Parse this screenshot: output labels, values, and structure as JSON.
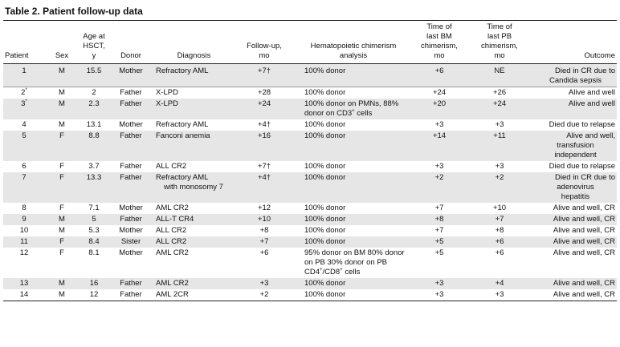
{
  "table": {
    "title": "Table 2. Patient follow-up data",
    "headers": {
      "patient": "Patient",
      "sex": "Sex",
      "age_lines": [
        "Age at",
        "HSCT,",
        "y"
      ],
      "donor": "Donor",
      "diagnosis": "Diagnosis",
      "followup_lines": [
        "Follow-up,",
        "mo"
      ],
      "chimerism_lines": [
        "Hematopoietic chimerism",
        "analysis"
      ],
      "bm_lines": [
        "Time of",
        "last BM",
        "chimerism,",
        "mo"
      ],
      "pb_lines": [
        "Time of",
        "last PB",
        "chimerism,",
        "mo"
      ],
      "outcome": "Outcome"
    },
    "rows": [
      {
        "patient": "1",
        "sex": "M",
        "age": "15.5",
        "donor": "Mother",
        "diagnosis": [
          "Refractory AML"
        ],
        "followup": "+7†",
        "chimerism": [
          "100% donor"
        ],
        "bm": "+6",
        "pb": "NE",
        "outcome": [
          "Died in CR due to",
          "Candida sepsis"
        ]
      },
      {
        "patient": "2*",
        "sex": "M",
        "age": "2",
        "donor": "Father",
        "diagnosis": [
          "X-LPD"
        ],
        "followup": "+28",
        "chimerism": [
          "100% donor"
        ],
        "bm": "+24",
        "pb": "+26",
        "outcome": [
          "Alive and well"
        ]
      },
      {
        "patient": "3*",
        "sex": "M",
        "age": "2.3",
        "donor": "Father",
        "diagnosis": [
          "X-LPD"
        ],
        "followup": "+24",
        "chimerism": [
          "100% donor on PMNs, 88%",
          "donor on CD3+ cells"
        ],
        "bm": "+20",
        "pb": "+24",
        "outcome": [
          "Alive and well"
        ]
      },
      {
        "patient": "4",
        "sex": "M",
        "age": "13.1",
        "donor": "Mother",
        "diagnosis": [
          "Refractory AML"
        ],
        "followup": "+4†",
        "chimerism": [
          "100% donor"
        ],
        "bm": "+3",
        "pb": "+3",
        "outcome": [
          "Died due to relapse"
        ]
      },
      {
        "patient": "5",
        "sex": "F",
        "age": "8.8",
        "donor": "Father",
        "diagnosis": [
          "Fanconi anemia"
        ],
        "followup": "+16",
        "chimerism": [
          "100% donor"
        ],
        "bm": "+14",
        "pb": "+11",
        "outcome": [
          "Alive and well,",
          "transfusion",
          "independent"
        ]
      },
      {
        "patient": "6",
        "sex": "F",
        "age": "3.7",
        "donor": "Father",
        "diagnosis": [
          "ALL CR2"
        ],
        "followup": "+7†",
        "chimerism": [
          "100% donor"
        ],
        "bm": "+3",
        "pb": "+3",
        "outcome": [
          "Died due to relapse"
        ]
      },
      {
        "patient": "7",
        "sex": "F",
        "age": "13.3",
        "donor": "Father",
        "diagnosis": [
          "Refractory AML",
          "with monosomy 7"
        ],
        "followup": "+4†",
        "chimerism": [
          "100% donor"
        ],
        "bm": "+2",
        "pb": "+2",
        "outcome": [
          "Died in CR due to",
          "adenovirus",
          "hepatitis"
        ]
      },
      {
        "patient": "8",
        "sex": "F",
        "age": "7.1",
        "donor": "Mother",
        "diagnosis": [
          "AML CR2"
        ],
        "followup": "+12",
        "chimerism": [
          "100% donor"
        ],
        "bm": "+7",
        "pb": "+10",
        "outcome": [
          "Alive and well, CR"
        ]
      },
      {
        "patient": "9",
        "sex": "M",
        "age": "5",
        "donor": "Father",
        "diagnosis": [
          "ALL-T CR4"
        ],
        "followup": "+10",
        "chimerism": [
          "100% donor"
        ],
        "bm": "+8",
        "pb": "+7",
        "outcome": [
          "Alive and well, CR"
        ]
      },
      {
        "patient": "10",
        "sex": "M",
        "age": "5.3",
        "donor": "Mother",
        "diagnosis": [
          "ALL CR2"
        ],
        "followup": "+8",
        "chimerism": [
          "100% donor"
        ],
        "bm": "+7",
        "pb": "+8",
        "outcome": [
          "Alive and well, CR"
        ]
      },
      {
        "patient": "11",
        "sex": "F",
        "age": "8.4",
        "donor": "Sister",
        "diagnosis": [
          "ALL CR2"
        ],
        "followup": "+7",
        "chimerism": [
          "100% donor"
        ],
        "bm": "+5",
        "pb": "+6",
        "outcome": [
          "Alive and well, CR"
        ]
      },
      {
        "patient": "12",
        "sex": "F",
        "age": "8.1",
        "donor": "Mother",
        "diagnosis": [
          "AML CR2"
        ],
        "followup": "+6",
        "chimerism": [
          "95% donor on BM 80% donor",
          "on PB 30% donor on PB",
          "CD4+/CD8+ cells"
        ],
        "bm": "+5",
        "pb": "+6",
        "outcome": [
          "Alive and well, CR"
        ]
      },
      {
        "patient": "13",
        "sex": "M",
        "age": "16",
        "donor": "Father",
        "diagnosis": [
          "AML CR2"
        ],
        "followup": "+3",
        "chimerism": [
          "100% donor"
        ],
        "bm": "+3",
        "pb": "+4",
        "outcome": [
          "Alive and well, CR"
        ]
      },
      {
        "patient": "14",
        "sex": "M",
        "age": "12",
        "donor": "Father",
        "diagnosis": [
          "AML 2CR"
        ],
        "followup": "+2",
        "chimerism": [
          "100% donor"
        ],
        "bm": "+3",
        "pb": "+3",
        "outcome": [
          "Alive and well, CR"
        ]
      }
    ]
  }
}
